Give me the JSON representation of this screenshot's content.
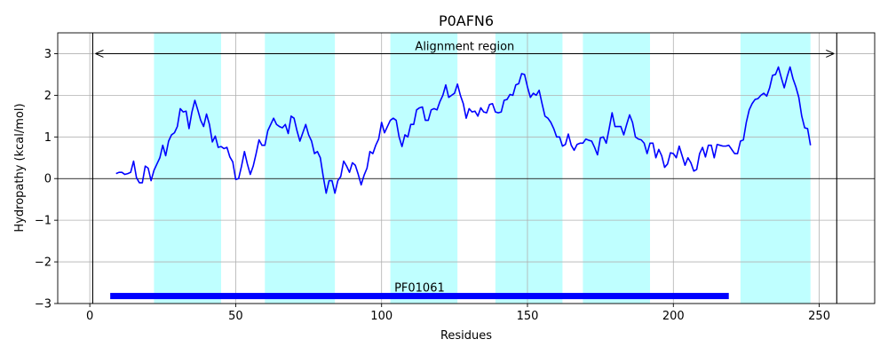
{
  "chart_data": {
    "type": "line",
    "title": "P0AFN6",
    "xlabel": "Residues",
    "ylabel": "Hydropathy (kcal/mol)",
    "xlim": [
      -11,
      269
    ],
    "ylim": [
      -3,
      3.5
    ],
    "xticks": [
      0,
      50,
      100,
      150,
      200,
      250
    ],
    "yticks": [
      -3,
      -2,
      -1,
      0,
      1,
      2,
      3
    ],
    "grid": true,
    "colors": {
      "line": "#0000ff",
      "band": "#bfffff",
      "domain_bar": "#0000ff",
      "axes": "#000000",
      "grid": "#b0b0b0"
    },
    "bands": [
      [
        22,
        45
      ],
      [
        60,
        84
      ],
      [
        103,
        126
      ],
      [
        139,
        162
      ],
      [
        169,
        192
      ],
      [
        223,
        247
      ]
    ],
    "alignment_region": {
      "label": "Alignment region",
      "start": 1,
      "end": 256,
      "y": 3.0
    },
    "domain": {
      "label": "PF01061",
      "start": 7,
      "end": 219,
      "y": -2.82
    },
    "series": [
      {
        "x": [
          9,
          10,
          11,
          12,
          13,
          14,
          15,
          16,
          17,
          18,
          19,
          20,
          21,
          22,
          23,
          24,
          25,
          26,
          27,
          28,
          29,
          30,
          31,
          32,
          33,
          34,
          35,
          36,
          37,
          38,
          39,
          40,
          41,
          42,
          43,
          44,
          45,
          46,
          47,
          48,
          49,
          50,
          51,
          52,
          53,
          54,
          55,
          56,
          57,
          58,
          59,
          60,
          61,
          62,
          63,
          64,
          65,
          66,
          67,
          68,
          69,
          70,
          71,
          72,
          73,
          74,
          75,
          76,
          77,
          78,
          79,
          80,
          81,
          82,
          83,
          84,
          85,
          86,
          87,
          88,
          89,
          90,
          91,
          92,
          93,
          94,
          95,
          96,
          97,
          98,
          99,
          100,
          101,
          102,
          103,
          104,
          105,
          106,
          107,
          108,
          109,
          110,
          111,
          112,
          113,
          114,
          115,
          116,
          117,
          118,
          119,
          120,
          121,
          122,
          123,
          124,
          125,
          126,
          127,
          128,
          129,
          130,
          131,
          132,
          133,
          134,
          135,
          136,
          137,
          138,
          139,
          140,
          141,
          142,
          143,
          144,
          145,
          146,
          147,
          148,
          149,
          150,
          151,
          152,
          153,
          154,
          155,
          156,
          157,
          158,
          159,
          160,
          161,
          162,
          163,
          164,
          165,
          166,
          167,
          168,
          169,
          170,
          171,
          172,
          173,
          174,
          175,
          176,
          177,
          178,
          179,
          180,
          181,
          182,
          183,
          184,
          185,
          186,
          187,
          188,
          189,
          190,
          191,
          192,
          193,
          194,
          195,
          196,
          197,
          198,
          199,
          200,
          201,
          202,
          203,
          204,
          205,
          206,
          207,
          208,
          209,
          210,
          211,
          212,
          213,
          214,
          215,
          216,
          217,
          218,
          219,
          220,
          221,
          222,
          223,
          224,
          225,
          226,
          227,
          228,
          229,
          230,
          231,
          232,
          233,
          234,
          235,
          236,
          237,
          238,
          239,
          240,
          241,
          242,
          243,
          244,
          245,
          246,
          247
        ],
        "y": [
          0.12,
          0.15,
          0.15,
          0.1,
          0.12,
          0.15,
          0.42,
          0.02,
          -0.1,
          -0.1,
          0.3,
          0.25,
          -0.05,
          0.2,
          0.35,
          0.5,
          0.8,
          0.55,
          0.9,
          1.05,
          1.1,
          1.25,
          1.68,
          1.6,
          1.62,
          1.2,
          1.6,
          1.88,
          1.65,
          1.4,
          1.25,
          1.55,
          1.3,
          0.88,
          1.02,
          0.75,
          0.77,
          0.72,
          0.75,
          0.52,
          0.4,
          -0.02,
          0.0,
          0.3,
          0.65,
          0.35,
          0.1,
          0.3,
          0.6,
          0.93,
          0.8,
          0.8,
          1.15,
          1.3,
          1.45,
          1.3,
          1.25,
          1.22,
          1.3,
          1.08,
          1.5,
          1.45,
          1.15,
          0.9,
          1.1,
          1.3,
          1.05,
          0.9,
          0.6,
          0.65,
          0.5,
          0.05,
          -0.35,
          -0.05,
          -0.05,
          -0.35,
          -0.05,
          0.05,
          0.42,
          0.3,
          0.15,
          0.38,
          0.32,
          0.1,
          -0.15,
          0.08,
          0.25,
          0.65,
          0.6,
          0.8,
          0.95,
          1.35,
          1.1,
          1.25,
          1.4,
          1.45,
          1.4,
          1.0,
          0.77,
          1.05,
          1.0,
          1.3,
          1.3,
          1.65,
          1.7,
          1.72,
          1.4,
          1.4,
          1.65,
          1.68,
          1.65,
          1.85,
          2.0,
          2.25,
          1.95,
          2.0,
          2.05,
          2.27,
          2.0,
          1.8,
          1.45,
          1.68,
          1.6,
          1.62,
          1.5,
          1.7,
          1.6,
          1.58,
          1.78,
          1.8,
          1.6,
          1.58,
          1.6,
          1.88,
          1.9,
          2.02,
          2.0,
          2.25,
          2.28,
          2.52,
          2.5,
          2.2,
          1.95,
          2.05,
          2.0,
          2.12,
          1.8,
          1.5,
          1.45,
          1.35,
          1.2,
          1.0,
          1.0,
          0.78,
          0.82,
          1.07,
          0.8,
          0.68,
          0.82,
          0.85,
          0.85,
          0.95,
          0.92,
          0.9,
          0.75,
          0.57,
          0.98,
          1.0,
          0.85,
          1.2,
          1.58,
          1.25,
          1.25,
          1.25,
          1.05,
          1.3,
          1.53,
          1.35,
          1.0,
          0.95,
          0.93,
          0.85,
          0.6,
          0.85,
          0.85,
          0.5,
          0.7,
          0.55,
          0.27,
          0.35,
          0.62,
          0.6,
          0.5,
          0.78,
          0.55,
          0.32,
          0.5,
          0.38,
          0.18,
          0.22,
          0.6,
          0.75,
          0.52,
          0.8,
          0.8,
          0.5,
          0.82,
          0.8,
          0.78,
          0.78,
          0.8,
          0.7,
          0.6,
          0.6,
          0.9,
          0.93,
          1.35,
          1.65,
          1.8,
          1.9,
          1.92,
          2.0,
          2.05,
          1.98,
          2.18,
          2.48,
          2.5,
          2.68,
          2.42,
          2.18,
          2.45,
          2.68,
          2.4,
          2.2,
          1.95,
          1.5,
          1.22,
          1.2,
          0.8
        ]
      }
    ]
  }
}
